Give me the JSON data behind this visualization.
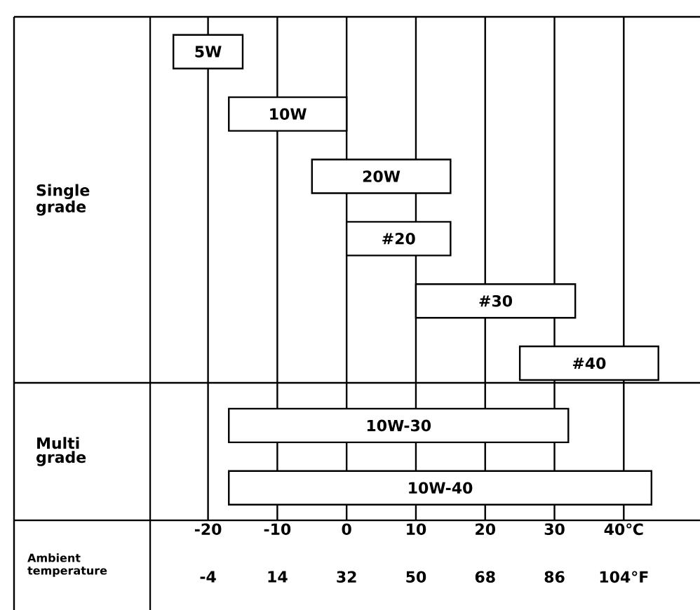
{
  "chart_data": {
    "type": "bar",
    "orientation": "horizontal",
    "categories": [
      "5W",
      "10W",
      "20W",
      "#20",
      "#30",
      "#40",
      "10W-30",
      "10W-40"
    ],
    "base": [
      -25,
      -17,
      -5,
      0,
      10,
      25,
      -17,
      -17
    ],
    "values": [
      10,
      17,
      20,
      15,
      23,
      20,
      49,
      61
    ],
    "color": "#ffffff",
    "xlim": [
      -48,
      51
    ],
    "xticks": [
      -20,
      -10,
      0,
      10,
      20,
      30,
      {
        "value": 40,
        "label": "40℃"
      }
    ],
    "x2lim": [
      -54.4,
      123.8
    ],
    "x2ticks": [
      -4,
      14,
      32,
      50,
      68,
      86,
      {
        "value": 104,
        "label": "104°F"
      }
    ],
    "xlabel": "Ambient temperature",
    "annotations": [
      "Single grade",
      "Multi grade"
    ],
    "grid": "x"
  }
}
